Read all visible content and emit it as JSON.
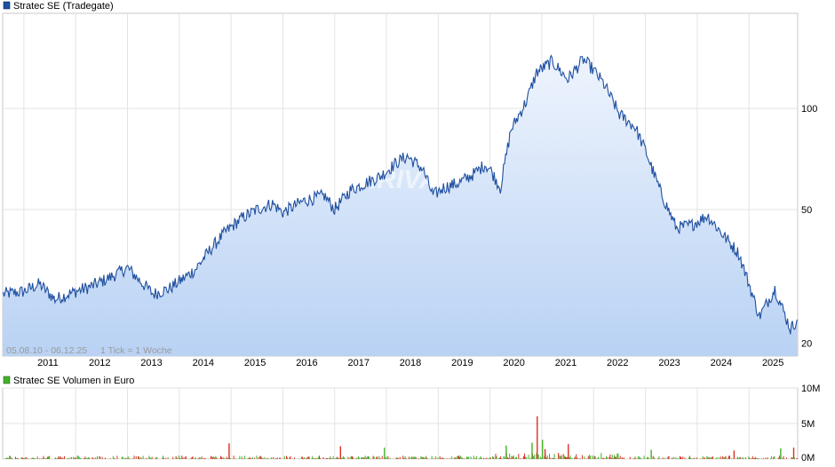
{
  "chart_data": [
    {
      "type": "area",
      "title": "Stratec SE (Tradegate)",
      "legend_position": "top-left",
      "date_range_label": "05.08.10 - 06.12.25",
      "tick_label": "1 Tick = 1 Woche",
      "watermark": "ARIVA",
      "y_scale": "log",
      "y_ticks": [
        20,
        50,
        100
      ],
      "x_ticks": [
        "2011",
        "2012",
        "2013",
        "2014",
        "2015",
        "2016",
        "2017",
        "2018",
        "2019",
        "2020",
        "2021",
        "2022",
        "2023",
        "2024",
        "2025"
      ],
      "grid": true,
      "colors": {
        "line": "#1f4fa0",
        "fill_top": "#eef4fd",
        "fill_bottom": "#b9d2f4",
        "legend_swatch": "#1f4fa0"
      },
      "x": [
        2010.6,
        2011.0,
        2011.3,
        2011.6,
        2012.0,
        2012.3,
        2012.6,
        2013.0,
        2013.3,
        2013.5,
        2013.8,
        2014.0,
        2014.3,
        2014.6,
        2014.9,
        2015.2,
        2015.5,
        2015.8,
        2016.0,
        2016.4,
        2016.8,
        2017.0,
        2017.3,
        2017.6,
        2017.9,
        2018.2,
        2018.4,
        2018.7,
        2018.9,
        2019.1,
        2019.4,
        2019.7,
        2019.9,
        2020.0,
        2020.2,
        2020.4,
        2020.7,
        2020.9,
        2021.2,
        2021.5,
        2021.8,
        2022.0,
        2022.2,
        2022.5,
        2022.8,
        2023.0,
        2023.3,
        2023.6,
        2023.9,
        2024.2,
        2024.5,
        2024.8,
        2025.0,
        2025.2,
        2025.5,
        2025.8,
        2025.93
      ],
      "values": [
        28.0,
        28.5,
        30.0,
        27.0,
        28.5,
        29.5,
        31.0,
        33.5,
        30.0,
        28.0,
        29.0,
        30.5,
        33.0,
        38.0,
        43.0,
        47.0,
        50.0,
        52.0,
        49.0,
        53.0,
        55.0,
        50.0,
        57.0,
        60.0,
        63.0,
        69.0,
        72.0,
        66.0,
        55.0,
        58.0,
        60.0,
        64.0,
        68.0,
        66.0,
        58.0,
        86.0,
        105.0,
        128.0,
        138.0,
        122.0,
        140.0,
        130.0,
        118.0,
        96.0,
        88.0,
        75.0,
        56.0,
        44.0,
        45.0,
        48.0,
        42.0,
        37.0,
        30.0,
        24.0,
        29.0,
        22.0,
        23.5
      ],
      "ylim": [
        18.3,
        192
      ]
    },
    {
      "type": "bar",
      "title": "Stratec SE Volumen in Euro",
      "legend_position": "top-left",
      "y_ticks_labels": [
        "10M",
        "5M",
        "0M"
      ],
      "y_ticks": [
        10,
        5,
        0
      ],
      "y_unit": "M Euro",
      "ylim": [
        0,
        10
      ],
      "colors": {
        "up": "#43b02a",
        "down": "#d93025",
        "legend_swatch": "#43b02a"
      },
      "spikes": [
        {
          "x": 2014.95,
          "value": 2.2,
          "dir": "down"
        },
        {
          "x": 2017.1,
          "value": 1.8,
          "dir": "down"
        },
        {
          "x": 2017.95,
          "value": 1.6,
          "dir": "up"
        },
        {
          "x": 2020.3,
          "value": 1.9,
          "dir": "up"
        },
        {
          "x": 2020.8,
          "value": 2.3,
          "dir": "up"
        },
        {
          "x": 2020.9,
          "value": 6.0,
          "dir": "down"
        },
        {
          "x": 2021.0,
          "value": 2.7,
          "dir": "up"
        },
        {
          "x": 2021.05,
          "value": 1.4,
          "dir": "down"
        },
        {
          "x": 2021.5,
          "value": 2.1,
          "dir": "down"
        },
        {
          "x": 2023.1,
          "value": 1.3,
          "dir": "up"
        },
        {
          "x": 2024.7,
          "value": 1.2,
          "dir": "down"
        },
        {
          "x": 2025.6,
          "value": 1.5,
          "dir": "up"
        },
        {
          "x": 2025.85,
          "value": 1.6,
          "dir": "down"
        }
      ]
    }
  ]
}
